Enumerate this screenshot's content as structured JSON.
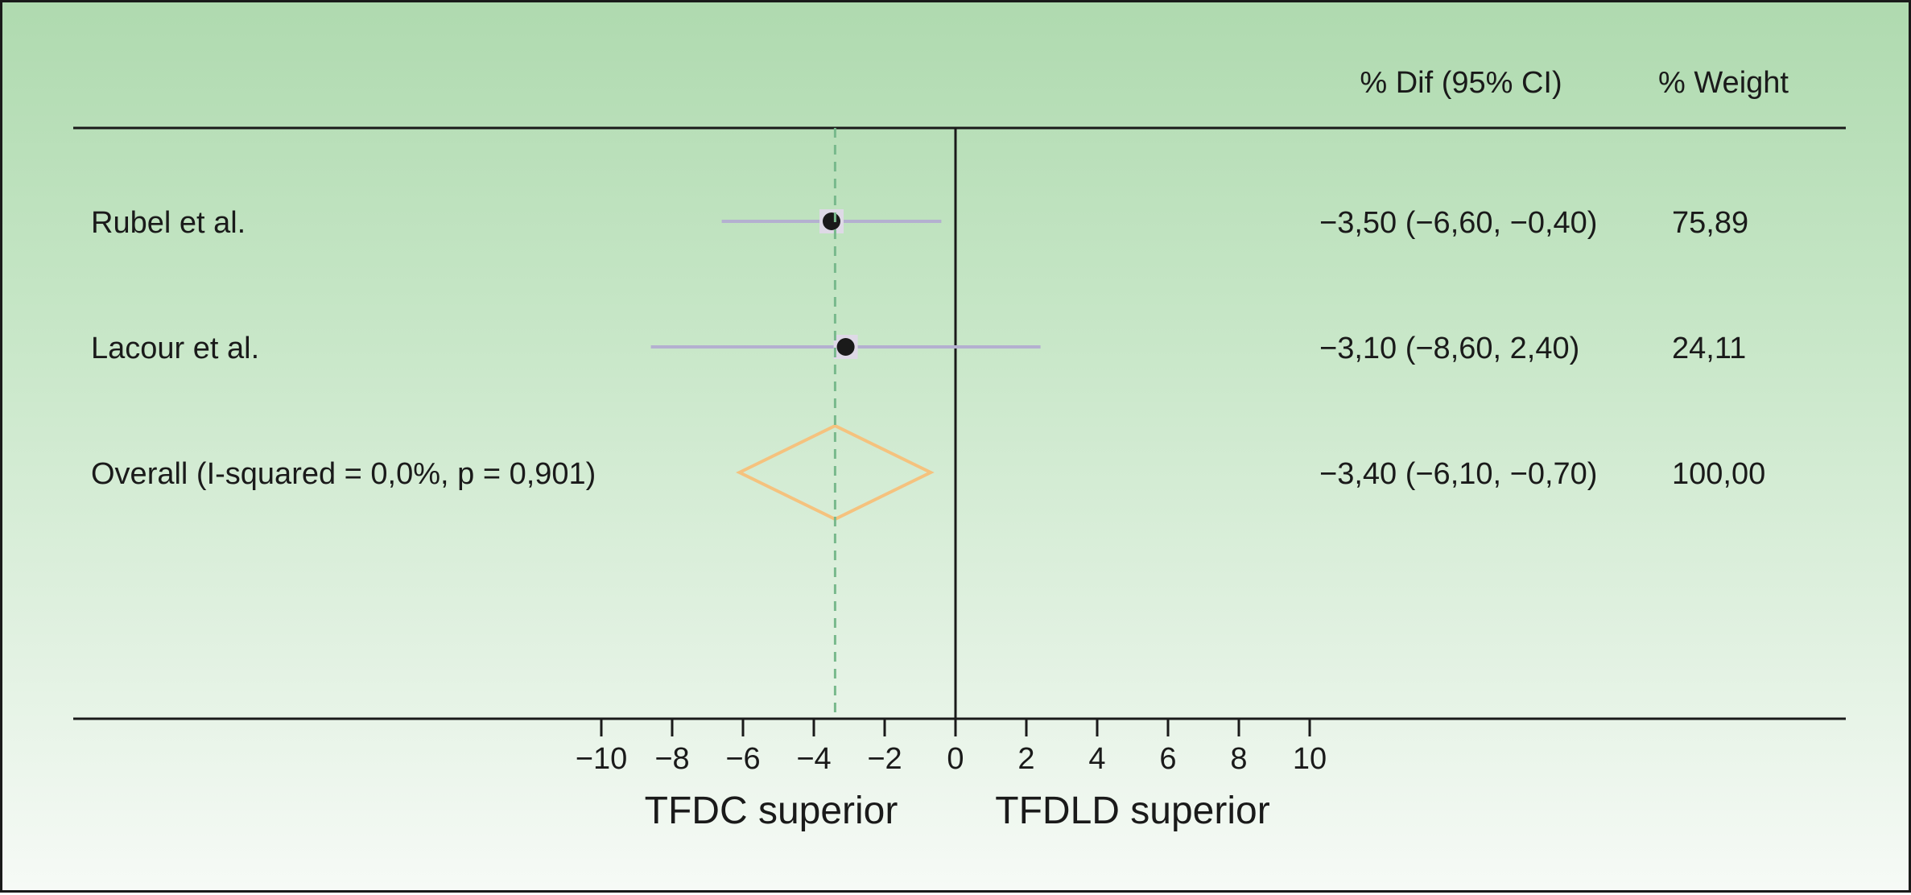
{
  "colors": {
    "background_top": "#afdaaf",
    "background_bottom": "#f6faf6",
    "ci_line": "#b4b0d0",
    "point": "#1a1a1a",
    "diamond": "#f5c27e",
    "dashed_line": "#78b98c",
    "axis": "#1a1a1a"
  },
  "chart_data": {
    "type": "forest",
    "columns": {
      "effect_header": "% Dif (95% CI)",
      "weight_header": "% Weight"
    },
    "studies": [
      {
        "label": "Rubel et al.",
        "estimate": -3.5,
        "ci_low": -6.6,
        "ci_high": -0.4,
        "effect_text": "−3,50 (−6,60, −0,40)",
        "weight_text": "75,89"
      },
      {
        "label": "Lacour et al.",
        "estimate": -3.1,
        "ci_low": -8.6,
        "ci_high": 2.4,
        "effect_text": "−3,10 (−8,60, 2,40)",
        "weight_text": "24,11"
      }
    ],
    "overall": {
      "label": "Overall (I-squared = 0,0%, p = 0,901)",
      "estimate": -3.4,
      "ci_low": -6.1,
      "ci_high": -0.7,
      "effect_text": "−3,40 (−6,10, −0,70)",
      "weight_text": "100,00"
    },
    "x_axis": {
      "ticks": [
        -10,
        -8,
        -6,
        -4,
        -2,
        0,
        2,
        4,
        6,
        8,
        10
      ],
      "tick_labels": [
        "−10",
        "−8",
        "−6",
        "−4",
        "−2",
        "0",
        "2",
        "4",
        "6",
        "8",
        "10"
      ],
      "xlim": [
        -10,
        10
      ],
      "left_label": "TFDC superior",
      "right_label": "TFDLD superior"
    },
    "null_line": 0,
    "pooled_dashed_line": -3.4
  }
}
